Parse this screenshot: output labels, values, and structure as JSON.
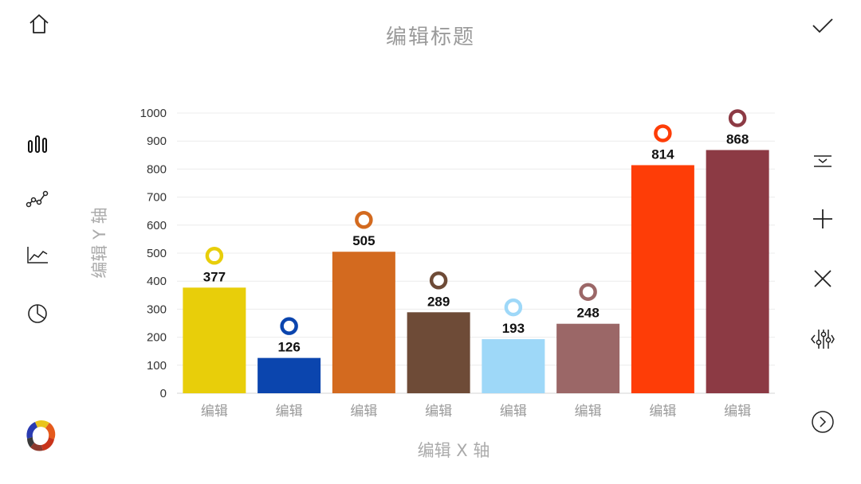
{
  "toolbar_left": {
    "items": [
      {
        "name": "home-icon",
        "icon": "home-icon"
      },
      {
        "name": "bar-chart-icon",
        "icon": "bar-chart-icon"
      },
      {
        "name": "line-chart-icon",
        "icon": "line-chart-icon"
      },
      {
        "name": "area-chart-icon",
        "icon": "area-chart-icon"
      },
      {
        "name": "pie-chart-icon",
        "icon": "pie-chart-icon"
      },
      {
        "name": "app-logo",
        "icon": "logo-icon"
      }
    ]
  },
  "toolbar_right": {
    "items": [
      {
        "name": "confirm-icon",
        "icon": "check-icon"
      },
      {
        "name": "collapse-icon",
        "icon": "collapse-icon"
      },
      {
        "name": "add-icon",
        "icon": "plus-icon"
      },
      {
        "name": "close-icon",
        "icon": "x-icon"
      },
      {
        "name": "adjust-icon",
        "icon": "sliders-icon"
      },
      {
        "name": "next-icon",
        "icon": "chevron-right-circle-icon"
      }
    ]
  },
  "chart_data": {
    "type": "bar",
    "title": "编辑标题",
    "xlabel": "编辑 X 轴",
    "ylabel": "编辑 Y 轴",
    "categories": [
      "编辑",
      "编辑",
      "编辑",
      "编辑",
      "编辑",
      "编辑",
      "编辑",
      "编辑"
    ],
    "values": [
      377,
      126,
      505,
      289,
      193,
      248,
      814,
      868
    ],
    "colors": [
      "#E8CE0A",
      "#0B45AE",
      "#D36A1F",
      "#6E4B37",
      "#9ED8F8",
      "#9B6767",
      "#FE3D07",
      "#8C3A44"
    ],
    "ylim": [
      0,
      1000
    ],
    "yticks": [
      0,
      100,
      200,
      300,
      400,
      500,
      600,
      700,
      800,
      900,
      1000
    ],
    "grid": true,
    "legend": "none"
  }
}
